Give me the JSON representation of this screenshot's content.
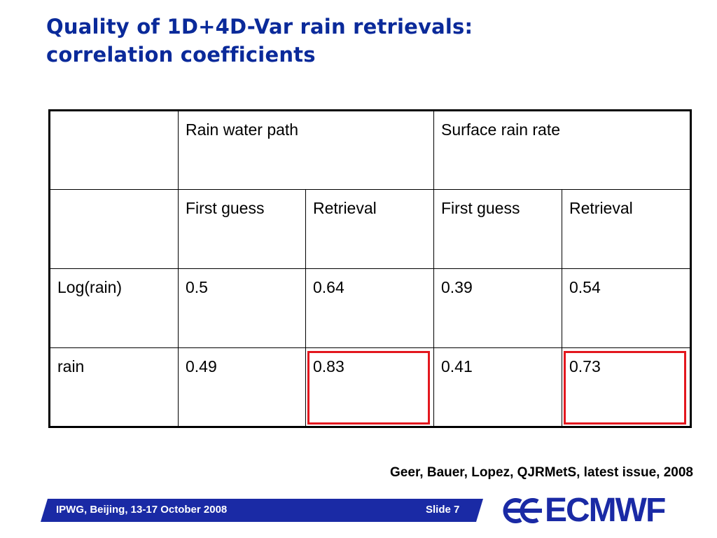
{
  "title": {
    "line1": "Quality of 1D+4D-Var rain retrievals:",
    "line2": "correlation coefficients"
  },
  "table": {
    "header": {
      "col1": "Rain water path",
      "col2": "Surface rain rate"
    },
    "subheader": [
      "First guess",
      "Retrieval",
      "First guess",
      "Retrieval"
    ],
    "rows": [
      {
        "label": "Log(rain)",
        "values": [
          "0.5",
          "0.64",
          "0.39",
          "0.54"
        ]
      },
      {
        "label": "rain",
        "values": [
          "0.49",
          "0.83",
          "0.41",
          "0.73"
        ]
      }
    ],
    "highlight_color": "#e3171e"
  },
  "citation": "Geer, Bauer, Lopez, QJRMetS, latest issue, 2008",
  "footer": {
    "left": "IPWG, Beijing, 13-17 October 2008",
    "right": "Slide 7",
    "band_color": "#1a2aa5"
  },
  "logo": {
    "text": "ECMWF",
    "icon": "ecmwf-logo-icon"
  },
  "colors": {
    "title": "#0a2a9a"
  }
}
